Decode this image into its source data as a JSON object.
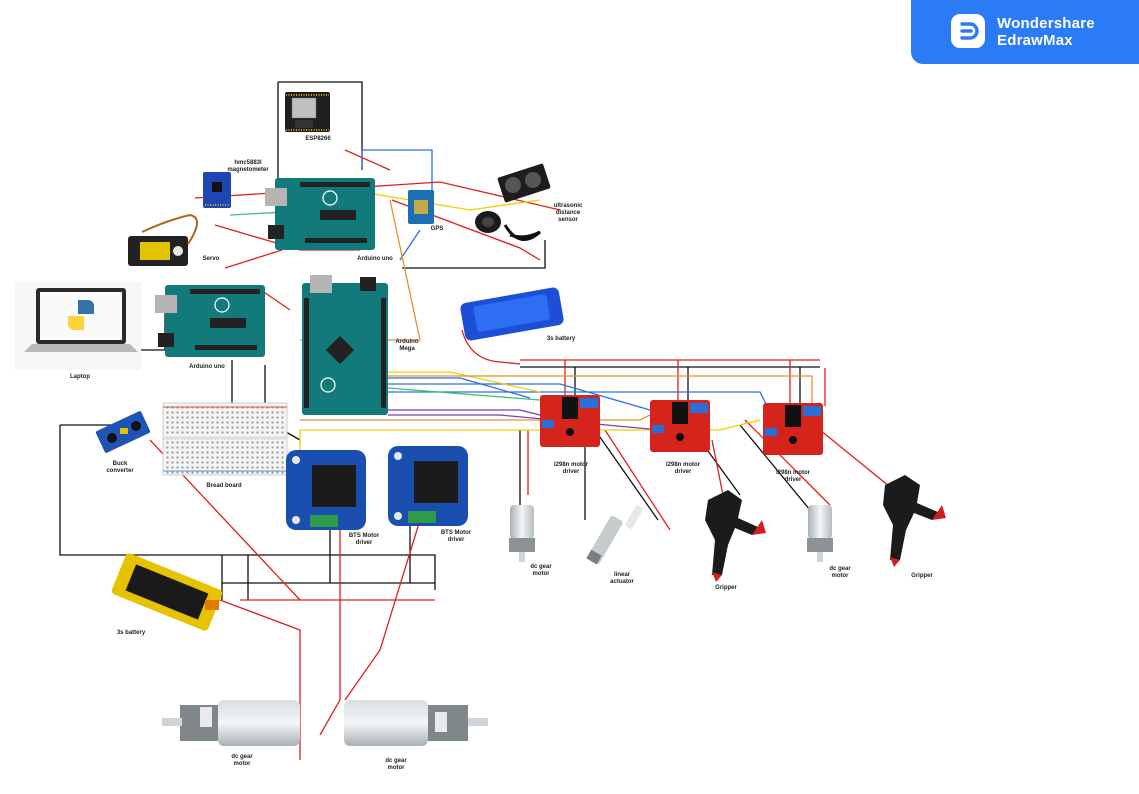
{
  "brand": {
    "line1": "Wondershare",
    "line2": "EdrawMax",
    "color": "#2b7bf6"
  },
  "wire_colors": {
    "power": "#e0201c",
    "ground": "#111111",
    "signal_blue": "#2f6fe0",
    "signal_yellow": "#f0d000",
    "signal_orange": "#e8902a",
    "signal_green": "#3fbf7f",
    "signal_purple": "#7a3cc0"
  },
  "labels": {
    "esp": "ESP8266",
    "magnetometer": "hmc5883l\nmagnetometer",
    "servo": "Servo",
    "arduino_uno_top": "Arduino uno",
    "gps": "GPS",
    "ultrasonic": "ultrasonic\ndistance\nsensor",
    "laptop": "Laptop",
    "arduino_uno_left": "Arduino uno",
    "arduino_mega": "Arduino\nMega",
    "battery_3s_top": "3s battery",
    "breadboard": "Bread board",
    "buck": "Buck\nconverter",
    "bts1": "BTS Motor\ndriver",
    "bts2": "BTS Motor\ndriver",
    "l298_1": "l298n motor\ndriver",
    "l298_2": "l298n motor\ndriver",
    "l298_3": "l298n motor\ndriver",
    "dc_motor_1": "dc gear\nmotor",
    "linear_actuator": "linear\nactuator",
    "gripper_1": "Gripper",
    "dc_motor_2": "dc gear\nmotor",
    "gripper_2": "Gripper",
    "battery_3s_bottom": "3s battery",
    "dc_motor_bottom_left": "dc gear\nmotor",
    "dc_motor_bottom_right": "dc gear\nmotor"
  }
}
